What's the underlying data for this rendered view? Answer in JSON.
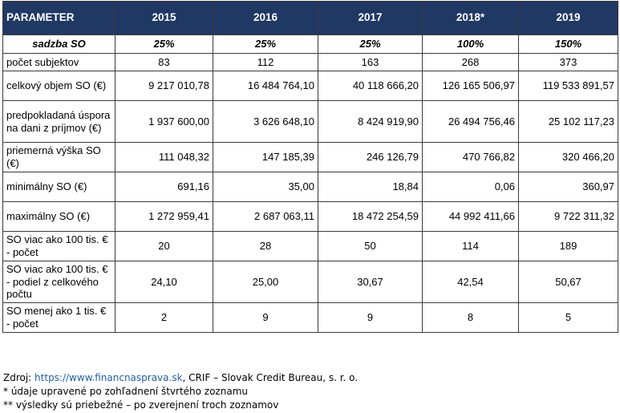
{
  "table": {
    "header": {
      "parameter": "PARAMETER",
      "years": [
        "2015",
        "2016",
        "2017",
        "2018*",
        "2019"
      ]
    },
    "rate_row": {
      "label": "sadzba SO",
      "values": [
        "25%",
        "25%",
        "25%",
        "100%",
        "150%"
      ]
    },
    "rows": [
      {
        "label": "počet subjektov",
        "values": [
          "83",
          "112",
          "163",
          "268",
          "373"
        ],
        "align": "center"
      },
      {
        "label": "celkový objem SO (€)",
        "values": [
          "9 217 010,78",
          "16 484 764,10",
          "40 118 666,20",
          "126 165 506,97",
          "119 533 891,57"
        ],
        "align": "right"
      },
      {
        "label": "predpokladaná úspora na dani z príjmov (€)",
        "values": [
          "1 937 600,00",
          "3 626 648,10",
          "8 424 919,90",
          "26 494 756,46",
          "25 102 117,23"
        ],
        "align": "right"
      },
      {
        "label": "priemerná výška SO (€)",
        "values": [
          "111 048,32",
          "147 185,39",
          "246 126,79",
          "470 766,82",
          "320 466,20"
        ],
        "align": "right"
      },
      {
        "label": "minimálny SO (€)",
        "values": [
          "691,16",
          "35,00",
          "18,84",
          "0,06",
          "360,97"
        ],
        "align": "right"
      },
      {
        "label": "maximálny SO (€)",
        "values": [
          "1 272 959,41",
          "2 687 063,11",
          "18 472 254,59",
          "44 992 411,66",
          "9 722 311,32"
        ],
        "align": "right"
      },
      {
        "label": "SO viac ako 100 tis. € - počet",
        "values": [
          "20",
          "28",
          "50",
          "114",
          "189"
        ],
        "align": "center"
      },
      {
        "label": "SO viac ako 100 tis. € - podiel z celkového počtu",
        "values": [
          "24,10",
          "25,00",
          "30,67",
          "42,54",
          "50,67"
        ],
        "align": "center"
      },
      {
        "label": "SO menej ako 1 tis. € - počet",
        "values": [
          "2",
          "9",
          "9",
          "8",
          "5"
        ],
        "align": "center"
      }
    ]
  },
  "notes": {
    "source_prefix": "Zdroj: ",
    "source_link": "https://www.financnasprava.sk",
    "source_suffix": ", CRIF – Slovak Credit Bureau, s. r. o.",
    "note1": "* údaje upravené po zohľadnení štvrtého zoznamu",
    "note2": "** výsledky sú priebežné – po zverejnení troch zoznamov"
  },
  "colors": {
    "header_bg": "#203864",
    "header_text": "#ffffff",
    "link": "#1f5fa8"
  }
}
